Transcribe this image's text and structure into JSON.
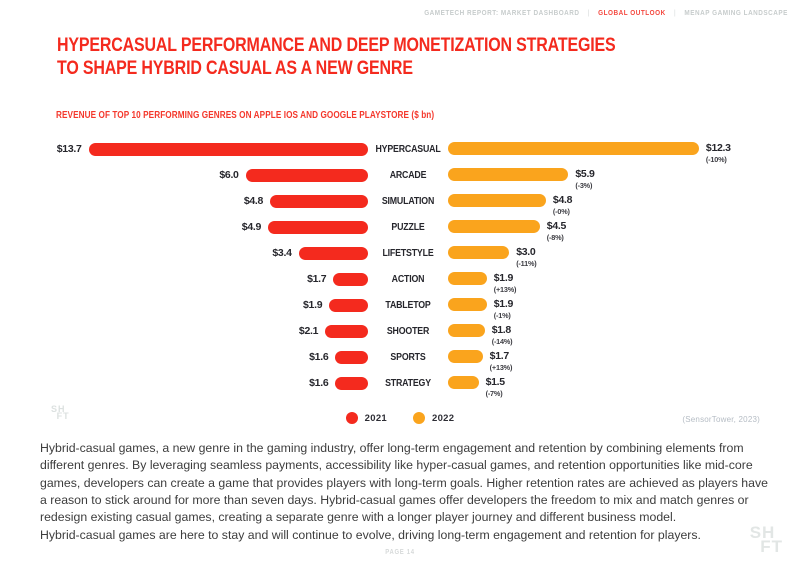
{
  "nav": {
    "separator": "|",
    "items": [
      {
        "label": "GAMETECH REPORT:  MARKET DASHBOARD",
        "active": false
      },
      {
        "label": "GLOBAL OUTLOOK",
        "active": true
      },
      {
        "label": "MENAP GAMING LANDSCAPE",
        "active": false
      }
    ]
  },
  "header": {
    "title_lines": [
      "HYPERCASUAL PERFORMANCE AND DEEP MONETIZATION STRATEGIES",
      "TO SHAPE HYBRID CASUAL AS A NEW GENRE"
    ],
    "subtitle": "REVENUE OF TOP 10 PERFORMING GENRES ON APPLE IOS AND GOOGLE PLAYSTORE ($ bn)"
  },
  "chart_data": {
    "type": "bar",
    "variant": "diverging-horizontal",
    "title": "REVENUE OF TOP 10 PERFORMING GENRES ON APPLE IOS AND GOOGLE PLAYSTORE ($ bn)",
    "unit": "$ bn",
    "categories": [
      "HYPERCASUAL",
      "ARCADE",
      "SIMULATION",
      "PUZZLE",
      "LIFETSTYLE",
      "ACTION",
      "TABLETOP",
      "SHOOTER",
      "SPORTS",
      "STRATEGY"
    ],
    "series": [
      {
        "name": "2021",
        "color": "#f42a1e",
        "values": [
          13.7,
          6.0,
          4.8,
          4.9,
          3.4,
          1.7,
          1.9,
          2.1,
          1.6,
          1.6
        ]
      },
      {
        "name": "2022",
        "color": "#faa41d",
        "values": [
          12.3,
          5.9,
          4.8,
          4.5,
          3.0,
          1.9,
          1.9,
          1.8,
          1.7,
          1.5
        ]
      }
    ],
    "value_labels": {
      "2021": [
        "$13.7",
        "$6.0",
        "$4.8",
        "$4.9",
        "$3.4",
        "$1.7",
        "$1.9",
        "$2.1",
        "$1.6",
        "$1.6"
      ],
      "2022": [
        "$12.3",
        "$5.9",
        "$4.8",
        "$4.5",
        "$3.0",
        "$1.9",
        "$1.9",
        "$1.8",
        "$1.7",
        "$1.5"
      ]
    },
    "change_labels": [
      "(-10%)",
      "(-3%)",
      "(-0%)",
      "(-8%)",
      "(-11%)",
      "(+13%)",
      "(-1%)",
      "(-14%)",
      "(+13%)",
      "(-7%)"
    ],
    "legend": {
      "position": "bottom-center",
      "items": [
        {
          "label": "2021",
          "color": "#f42a1e"
        },
        {
          "label": "2022",
          "color": "#faa41d"
        }
      ]
    },
    "source": "(SensorTower, 2023)"
  },
  "body": {
    "paragraphs": [
      "Hybrid-casual games, a new genre in the gaming industry, offer long-term engagement and retention by combining elements from different genres. By leveraging seamless payments, accessibility like hyper-casual games, and retention opportunities like mid-core games, developers can create a game that provides players with long-term goals. Higher retention rates are achieved as players have a reason to stick around for more than seven days. Hybrid-casual games offer developers the freedom to mix and match genres or redesign existing casual games, creating a separate genre with a longer player journey and different business model.",
      "Hybrid-casual games are here to stay and will continue to evolve, driving long-term engagement and retention for players."
    ]
  },
  "footer": {
    "page_label": "PAGE 14"
  },
  "logo": {
    "line1": "SH",
    "line2": "FT"
  }
}
